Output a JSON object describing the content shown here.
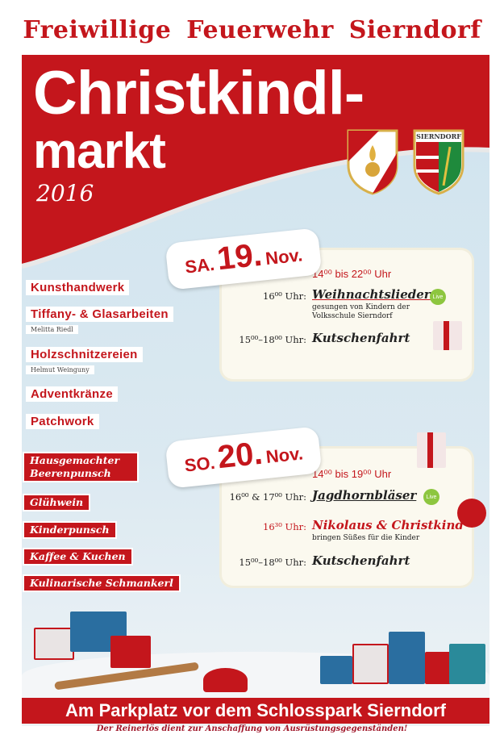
{
  "header": {
    "organizer": "Freiwillige Feuerwehr Sierndorf"
  },
  "headline": {
    "line1": "Christkindl-",
    "line2": "markt",
    "year": "2016"
  },
  "crests": {
    "town_label": "SIERNDORF"
  },
  "colors": {
    "red": "#c4161c",
    "sky": "#d4e6ef",
    "card": "#fbf9ef",
    "live": "#8dc63f"
  },
  "saturday": {
    "day": "SA.",
    "date": "19.",
    "month": "Nov.",
    "hours": "14⁰⁰ bis 22⁰⁰ Uhr",
    "events": [
      {
        "time": "16⁰⁰ Uhr:",
        "title": "Weihnachtslieder",
        "detail": "gesungen von Kindern der Volksschule Sierndorf",
        "badge": "Live"
      },
      {
        "time": "15⁰⁰–18⁰⁰ Uhr:",
        "title": "Kutschenfahrt"
      }
    ]
  },
  "sunday": {
    "day": "SO.",
    "date": "20.",
    "month": "Nov.",
    "hours": "14⁰⁰ bis 19⁰⁰ Uhr",
    "events": [
      {
        "time": "16⁰⁰ & 17⁰⁰ Uhr:",
        "title": "Jagdhornbläser",
        "badge": "Live"
      },
      {
        "time": "16³⁰ Uhr:",
        "title": "Nikolaus & Christkind",
        "detail": "bringen Süßes für die Kinder"
      },
      {
        "time": "15⁰⁰–18⁰⁰ Uhr:",
        "title": "Kutschenfahrt"
      }
    ]
  },
  "crafts": [
    {
      "name": "Kunsthandwerk"
    },
    {
      "name": "Tiffany- & Glasarbeiten",
      "maker": "Melitta Riedl"
    },
    {
      "name": "Holzschnitzereien",
      "maker": "Helmut Weinguny"
    },
    {
      "name": "Adventkränze"
    },
    {
      "name": "Patchwork"
    }
  ],
  "food": [
    "Hausgemachter Beerenpunsch",
    "Glühwein",
    "Kinderpunsch",
    "Kaffee & Kuchen",
    "Kulinarische Schmankerl"
  ],
  "location": "Am Parkplatz vor dem Schlosspark Sierndorf",
  "footer": "Der Reinerlös dient zur Anschaffung von Ausrüstungsgegenständen!"
}
